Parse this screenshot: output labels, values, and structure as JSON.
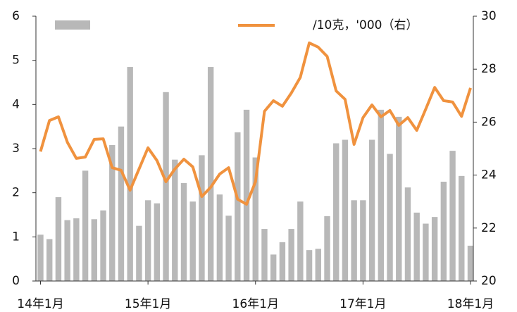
{
  "chart_data": {
    "type": "bar_line",
    "categories": [
      "14年1月",
      null,
      null,
      null,
      null,
      null,
      null,
      null,
      null,
      null,
      null,
      null,
      "15年1月",
      null,
      null,
      null,
      null,
      null,
      null,
      null,
      null,
      null,
      null,
      null,
      "16年1月",
      null,
      null,
      null,
      null,
      null,
      null,
      null,
      null,
      null,
      null,
      null,
      "17年1月",
      null,
      null,
      null,
      null,
      null,
      null,
      null,
      null,
      null,
      null,
      null,
      "18年1月"
    ],
    "series": [
      {
        "type": "bar",
        "color": "#b8b8b8",
        "values": [
          1.05,
          0.95,
          1.9,
          1.38,
          1.42,
          2.5,
          1.4,
          1.6,
          3.08,
          3.5,
          4.85,
          1.25,
          1.83,
          1.76,
          4.28,
          2.75,
          2.22,
          1.8,
          2.85,
          4.85,
          1.96,
          1.48,
          3.37,
          3.88,
          2.8,
          1.18,
          0.6,
          0.88,
          1.18,
          1.8,
          0.7,
          0.73,
          1.47,
          3.12,
          3.2,
          1.83,
          1.83,
          3.2,
          3.88,
          2.88,
          3.72,
          2.12,
          1.55,
          1.3,
          1.45,
          2.25,
          2.95,
          2.38,
          0.8
        ]
      },
      {
        "type": "line",
        "name": "/10克，'000（右）",
        "color": "#f0923e",
        "axis": "y2",
        "values": [
          24.89,
          26.06,
          26.2,
          25.24,
          24.63,
          24.68,
          25.35,
          25.37,
          24.28,
          24.18,
          23.43,
          24.23,
          25.03,
          24.55,
          23.75,
          24.23,
          24.6,
          24.31,
          23.19,
          23.54,
          24.04,
          24.28,
          23.09,
          22.9,
          23.75,
          26.41,
          26.81,
          26.6,
          27.1,
          27.69,
          28.99,
          28.83,
          28.48,
          27.18,
          26.86,
          25.16,
          26.17,
          26.65,
          26.2,
          26.44,
          25.88,
          26.17,
          25.69,
          26.49,
          27.31,
          26.81,
          26.76,
          26.22,
          27.29
        ]
      }
    ],
    "ylim": [
      0,
      6
    ],
    "yticks": [
      0,
      1,
      2,
      3,
      4,
      5,
      6
    ],
    "y2lim": [
      20,
      30
    ],
    "y2ticks": [
      20,
      22,
      24,
      26,
      28,
      30
    ]
  }
}
